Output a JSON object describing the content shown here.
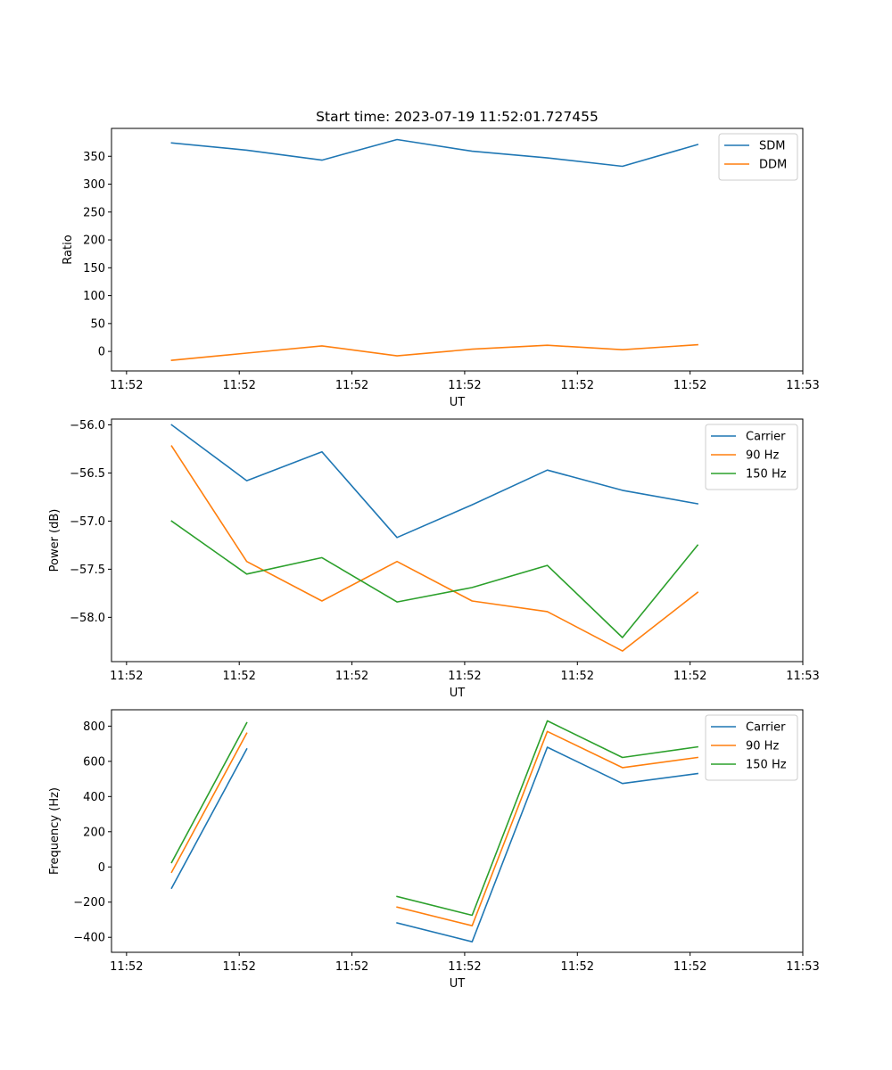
{
  "chart_data": [
    {
      "type": "line",
      "title": "Start time: 2023-07-19 11:52:01.727455",
      "xlabel": "UT",
      "ylabel": "Ratio",
      "x": [
        1,
        2,
        3,
        4,
        5,
        6,
        7,
        8
      ],
      "xlim": [
        0.2,
        9.4
      ],
      "xticks": [
        0.4,
        1.9,
        3.4,
        4.9,
        6.4,
        7.9,
        9.4
      ],
      "xtick_labels": [
        "11:52",
        "11:52",
        "11:52",
        "11:52",
        "11:52",
        "11:52",
        "11:53"
      ],
      "ylim": [
        -35,
        400
      ],
      "yticks": [
        0,
        50,
        100,
        150,
        200,
        250,
        300,
        350
      ],
      "ytick_labels": [
        "0",
        "50",
        "100",
        "150",
        "200",
        "250",
        "300",
        "350"
      ],
      "legend": "top-right",
      "grid": false,
      "series": [
        {
          "name": "SDM",
          "color": "#1f77b4",
          "values": [
            374,
            361,
            343,
            380,
            359,
            347,
            332,
            371
          ]
        },
        {
          "name": "DDM",
          "color": "#ff7f0e",
          "values": [
            -16,
            -3,
            10,
            -8,
            4,
            11,
            3,
            12
          ]
        }
      ]
    },
    {
      "type": "line",
      "title": "",
      "xlabel": "UT",
      "ylabel": "Power (dB)",
      "x": [
        1,
        2,
        3,
        4,
        5,
        6,
        7,
        8
      ],
      "xlim": [
        0.2,
        9.4
      ],
      "xticks": [
        0.4,
        1.9,
        3.4,
        4.9,
        6.4,
        7.9,
        9.4
      ],
      "xtick_labels": [
        "11:52",
        "11:52",
        "11:52",
        "11:52",
        "11:52",
        "11:52",
        "11:53"
      ],
      "ylim": [
        -58.46,
        -55.94
      ],
      "yticks": [
        -56.0,
        -56.5,
        -57.0,
        -57.5,
        -58.0
      ],
      "ytick_labels": [
        "−56.0",
        "−56.5",
        "−57.0",
        "−57.5",
        "−58.0"
      ],
      "legend": "top-right",
      "grid": false,
      "series": [
        {
          "name": "Carrier",
          "color": "#1f77b4",
          "values": [
            -56.0,
            -56.58,
            -56.28,
            -57.17,
            -56.83,
            -56.47,
            -56.68,
            -56.82
          ]
        },
        {
          "name": "90 Hz",
          "color": "#ff7f0e",
          "values": [
            -56.22,
            -57.42,
            -57.83,
            -57.42,
            -57.83,
            -57.94,
            -58.35,
            -57.74
          ]
        },
        {
          "name": "150 Hz",
          "color": "#2ca02c",
          "values": [
            -57.0,
            -57.55,
            -57.38,
            -57.84,
            -57.69,
            -57.46,
            -58.21,
            -57.25
          ]
        }
      ]
    },
    {
      "type": "line",
      "title": "",
      "xlabel": "UT",
      "ylabel": "Frequency (Hz)",
      "x": [
        1,
        2,
        3,
        4,
        5,
        6,
        7,
        8
      ],
      "xlim": [
        0.2,
        9.4
      ],
      "xticks": [
        0.4,
        1.9,
        3.4,
        4.9,
        6.4,
        7.9,
        9.4
      ],
      "xtick_labels": [
        "11:52",
        "11:52",
        "11:52",
        "11:52",
        "11:52",
        "11:52",
        "11:53"
      ],
      "ylim": [
        -485,
        893
      ],
      "yticks": [
        -400,
        -200,
        0,
        200,
        400,
        600,
        800
      ],
      "ytick_labels": [
        "−400",
        "−200",
        "0",
        "200",
        "400",
        "600",
        "800"
      ],
      "legend": "top-right",
      "grid": false,
      "series": [
        {
          "name": "Carrier",
          "color": "#1f77b4",
          "values": [
            -120,
            670,
            null,
            -318,
            -425,
            680,
            474,
            531
          ]
        },
        {
          "name": "90 Hz",
          "color": "#ff7f0e",
          "values": [
            -30,
            760,
            null,
            -228,
            -334,
            770,
            564,
            622
          ]
        },
        {
          "name": "150 Hz",
          "color": "#2ca02c",
          "values": [
            25,
            819,
            null,
            -168,
            -275,
            830,
            622,
            682
          ]
        }
      ]
    }
  ]
}
